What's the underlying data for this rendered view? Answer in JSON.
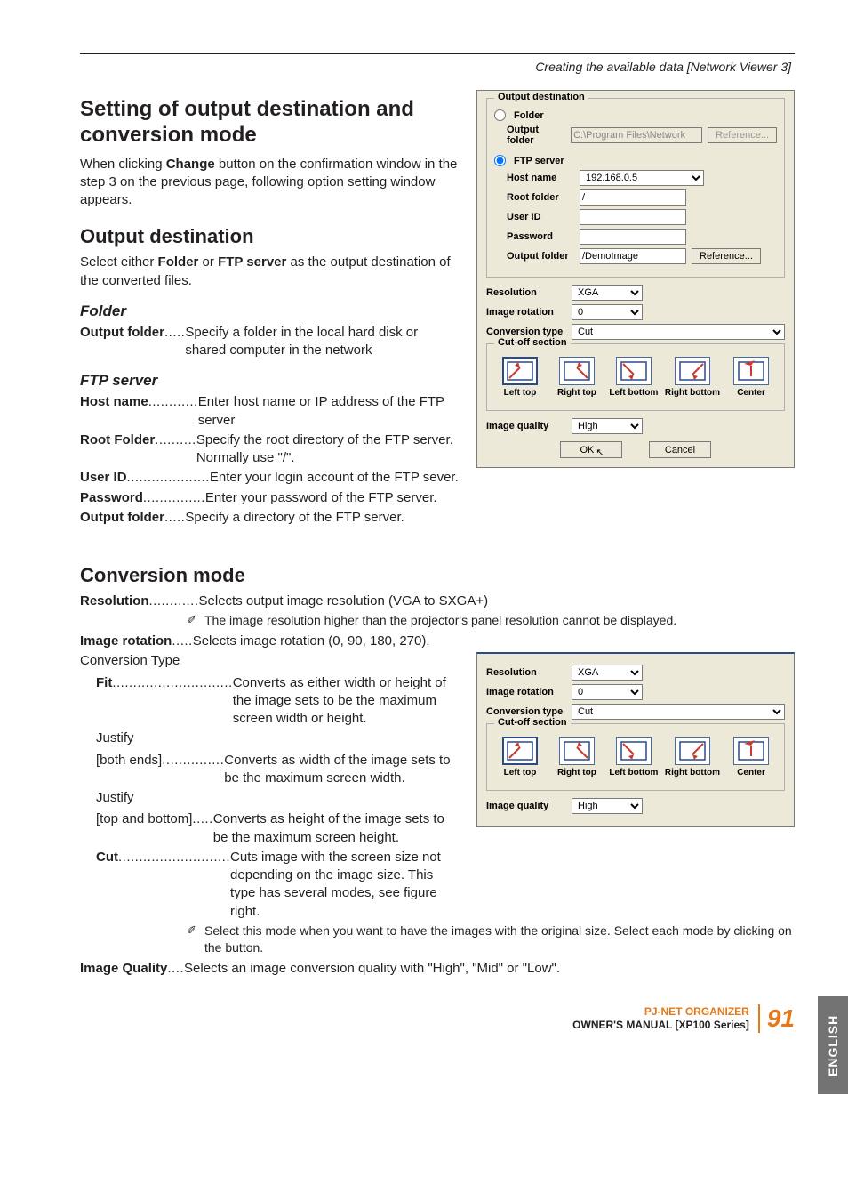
{
  "header": {
    "breadcrumb": "Creating the available data [Network Viewer 3]"
  },
  "titles": {
    "main": "Setting of output destination and conversion mode",
    "output_dest": "Output destination",
    "conversion": "Conversion mode",
    "folder": "Folder",
    "ftp": "FTP server"
  },
  "paragraphs": {
    "intro1": "When clicking ",
    "intro_bold": "Change",
    "intro2": " button on the confirmation window in the step 3 on the previous page, following option setting window appears.",
    "outdest1": "Select either ",
    "outdest_b1": "Folder",
    "outdest_mid": " or ",
    "outdest_b2": "FTP server",
    "outdest2": " as the output destination of the converted files."
  },
  "defs": {
    "folder_out": {
      "term": "Output folder",
      "dots": ".....",
      "desc": "Specify a folder in the local hard disk or shared computer in the network"
    },
    "host": {
      "term": "Host name",
      "dots": "............",
      "desc": "Enter host name or IP address of the FTP server"
    },
    "root": {
      "term": "Root Folder",
      "dots": "..........",
      "desc": "Specify the root directory of the FTP server. Normally use \"/\"."
    },
    "userid": {
      "term": "User ID",
      "dots": " ....................",
      "desc": "Enter your login account of the FTP sever."
    },
    "password": {
      "term": "Password",
      "dots": "...............",
      "desc": "Enter your password of the FTP server."
    },
    "ftp_out": {
      "term": "Output folder",
      "dots": ".....",
      "desc": "Specify a directory of the FTP server."
    },
    "resolution": {
      "term": "Resolution",
      "dots": "............",
      "desc": "Selects output image resolution (VGA to SXGA+)"
    },
    "resolution_note": "The image resolution higher than the projector's panel resolution cannot be displayed.",
    "rotation": {
      "term": "Image rotation",
      "dots": ".....",
      "desc": "Selects image rotation (0, 90, 180, 270)."
    },
    "conv_type_label": "Conversion Type",
    "fit": {
      "term": "Fit",
      "dots": ".............................",
      "desc": "Converts as either width or height of the image  sets to be the maximum screen width or height."
    },
    "justify1_label": "Justify",
    "justify1": {
      "term": "[both ends]",
      "dots": "...............",
      "desc": "Converts as width of the image sets to be the maximum screen width."
    },
    "justify2_label": "Justify",
    "justify2": {
      "term": "[top and bottom]",
      "dots": ".....",
      "desc": "Converts as height of the image sets to be the maximum screen height."
    },
    "cut": {
      "term": "Cut",
      "dots": "...........................",
      "desc": "Cuts image with the screen size not depending on the image size. This type has several modes, see figure right."
    },
    "cut_note": "Select this mode when you want to have the images with the original size. Select each mode by clicking on the button.",
    "quality": {
      "term": "Image Quality",
      "dots": "....",
      "desc": "Selects an image conversion quality with \"High\", \"Mid\" or \"Low\"."
    }
  },
  "dialog": {
    "group_outdest": "Output destination",
    "radio_folder": "Folder",
    "radio_ftp": "FTP server",
    "lbl_output_folder": "Output folder",
    "val_output_folder": "C:\\Program Files\\Network",
    "btn_reference": "Reference...",
    "lbl_host": "Host name",
    "val_host": "192.168.0.5",
    "lbl_root": "Root folder",
    "val_root": "/",
    "lbl_userid": "User ID",
    "val_userid": "",
    "lbl_password": "Password",
    "val_password": "",
    "lbl_out2": "Output folder",
    "val_out2": "/DemoImage",
    "lbl_resolution": "Resolution",
    "val_resolution": "XGA",
    "lbl_rotation": "Image rotation",
    "val_rotation": "0",
    "lbl_convtype": "Conversion type",
    "val_convtype": "Cut",
    "group_cutoff": "Cut-off section",
    "cutoff": [
      "Left top",
      "Right top",
      "Left bottom",
      "Right bottom",
      "Center"
    ],
    "lbl_quality": "Image quality",
    "val_quality": "High",
    "btn_ok": "OK",
    "btn_cancel": "Cancel"
  },
  "footer": {
    "tab": "ENGLISH",
    "org": "PJ-NET ORGANIZER",
    "manual": "OWNER'S MANUAL [XP100 Series]",
    "page": "91"
  },
  "colors": {
    "accent": "#e67817",
    "dialog_bg": "#ece9d8",
    "tab_bg": "#737373",
    "icon_blue": "#2a4a88",
    "icon_red": "#cc3a2e"
  }
}
